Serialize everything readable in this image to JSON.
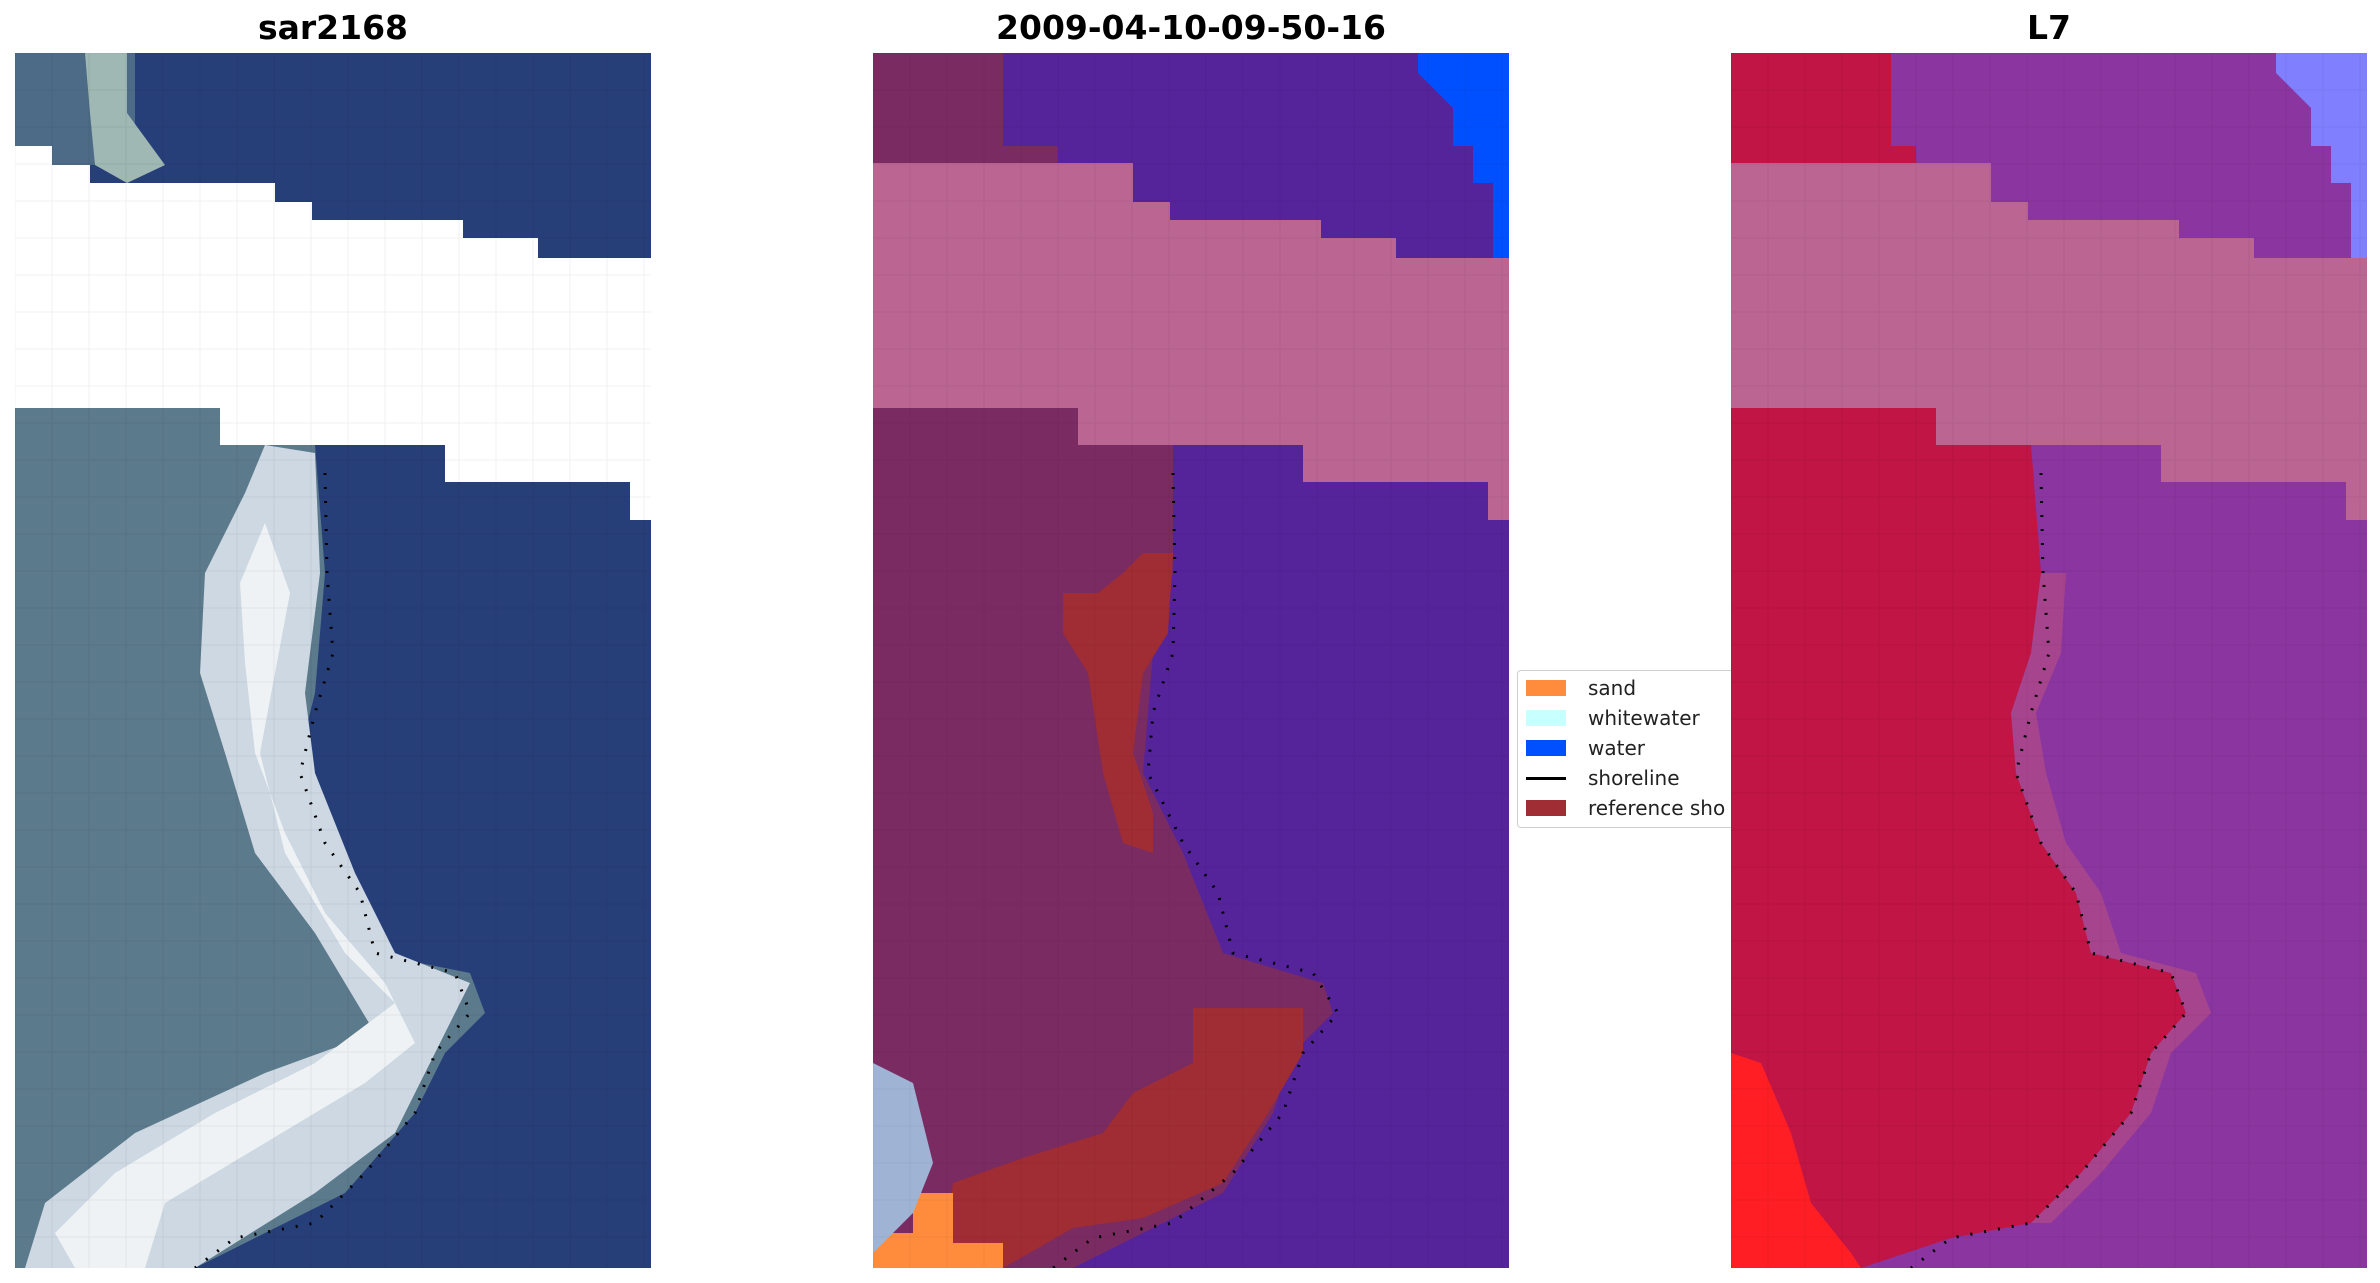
{
  "panels": [
    {
      "title": "sar2168",
      "kind": "rgb"
    },
    {
      "title": "2009-04-10-09-50-16",
      "kind": "classified"
    },
    {
      "title": "L7",
      "kind": "falsecolor"
    }
  ],
  "legend": {
    "items": [
      {
        "label": "sand",
        "color": "#ff8c3c",
        "kind": "patch"
      },
      {
        "label": "whitewater",
        "color": "#c8ffff",
        "kind": "patch"
      },
      {
        "label": "water",
        "color": "#0050ff",
        "kind": "patch"
      },
      {
        "label": "shoreline",
        "color": "#000000",
        "kind": "line"
      },
      {
        "label": "reference sho",
        "color": "#a02c34",
        "kind": "patch"
      }
    ]
  },
  "colors": {
    "ocean_rgb": "#263f78",
    "land_rgb": "#5b7a8c",
    "surf_rgb": "#e4eaf0",
    "ocean_class": "#55239a",
    "land_class": "#7a2b62",
    "cloud_mask": "#ba6592",
    "ocean_false": "#8a35a0",
    "land_false": "#c01545",
    "shoreline_dots": "#000000"
  }
}
